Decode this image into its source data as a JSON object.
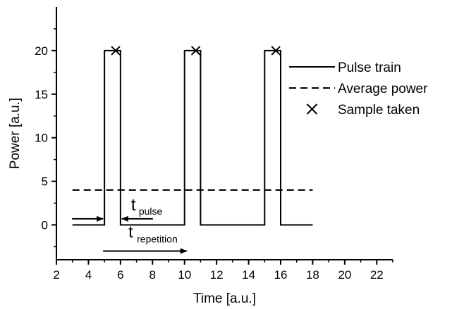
{
  "chart_data": {
    "type": "line",
    "title": "",
    "xlabel": "Time [a.u.]",
    "ylabel": "Power [a.u.]",
    "xlim": [
      2,
      23
    ],
    "ylim": [
      -4,
      25
    ],
    "xticks": [
      "2",
      "4",
      "6",
      "8",
      "10",
      "12",
      "14",
      "16",
      "18",
      "20",
      "22"
    ],
    "yticks": [
      "0",
      "5",
      "10",
      "15",
      "20"
    ],
    "grid": false,
    "legend_position": "right",
    "series": [
      {
        "name": "Pulse train",
        "style": "solid",
        "x": [
          3,
          5,
          5,
          6,
          6,
          10,
          10,
          11,
          11,
          15,
          15,
          16,
          16,
          18
        ],
        "y": [
          0,
          0,
          20,
          20,
          0,
          0,
          20,
          20,
          0,
          0,
          20,
          20,
          0,
          0
        ]
      },
      {
        "name": "Average power",
        "style": "dashed",
        "x": [
          3,
          18
        ],
        "y": [
          4,
          4
        ]
      },
      {
        "name": "Sample taken",
        "style": "marker-x",
        "x": [
          5.7,
          10.7,
          15.7
        ],
        "y": [
          20,
          20,
          20
        ]
      }
    ],
    "annotations": {
      "pulse": {
        "main": "t",
        "sub": "pulse",
        "from": 5,
        "to": 6,
        "y": 0.7
      },
      "repetition": {
        "main": "t",
        "sub": "repetition",
        "from": 5,
        "to": 10,
        "y": -3.0
      }
    }
  }
}
